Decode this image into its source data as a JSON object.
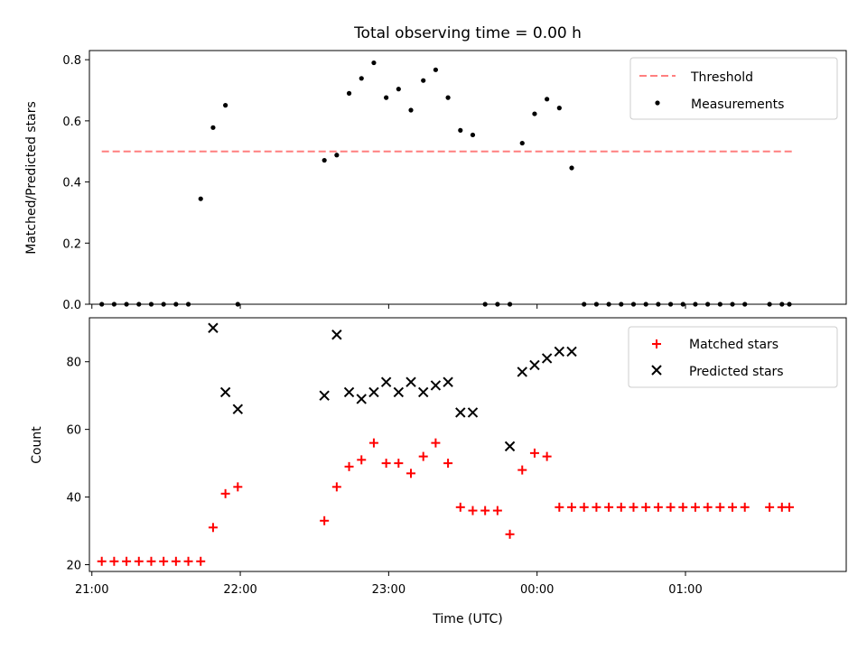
{
  "chart_data": [
    {
      "type": "scatter",
      "title": "Total observing time = 0.00 h",
      "xlabel": "",
      "ylabel": "Matched/Predicted stars",
      "ylim": [
        0,
        0.83
      ],
      "xlim": [
        "20:59",
        "02:05"
      ],
      "yticks": [
        0.0,
        0.2,
        0.4,
        0.6,
        0.8
      ],
      "ytick_labels": [
        "0.0",
        "0.2",
        "0.4",
        "0.6",
        "0.8"
      ],
      "grid": false,
      "legend_position": "top-right",
      "series": [
        {
          "name": "Threshold",
          "kind": "line",
          "style": "dashed",
          "color": "#ff7f7f",
          "x": [
            "21:04",
            "01:43"
          ],
          "y": [
            0.5,
            0.5
          ]
        },
        {
          "name": "Measurements",
          "kind": "scatter",
          "marker": "dot",
          "color": "#000000",
          "x": [
            "21:04",
            "21:09",
            "21:14",
            "21:19",
            "21:24",
            "21:29",
            "21:34",
            "21:39",
            "21:44",
            "21:49",
            "21:54",
            "21:59",
            "22:34",
            "22:39",
            "22:44",
            "22:49",
            "22:54",
            "22:59",
            "23:04",
            "23:09",
            "23:14",
            "23:19",
            "23:24",
            "23:29",
            "23:34",
            "23:39",
            "23:44",
            "23:49",
            "23:54",
            "23:59",
            "00:04",
            "00:09",
            "00:14",
            "00:19",
            "00:24",
            "00:29",
            "00:34",
            "00:39",
            "00:44",
            "00:49",
            "00:54",
            "00:59",
            "01:04",
            "01:09",
            "01:14",
            "01:19",
            "01:24",
            "01:34",
            "01:39",
            "01:42"
          ],
          "y": [
            0,
            0,
            0,
            0,
            0,
            0,
            0,
            0,
            0.345,
            0.578,
            0.651,
            0,
            0.471,
            0.488,
            0.69,
            0.739,
            0.79,
            0.676,
            0.704,
            0.635,
            0.732,
            0.767,
            0.676,
            0.569,
            0.554,
            0,
            0,
            0,
            0.527,
            0.623,
            0.671,
            0.642,
            0.446,
            0,
            0,
            0,
            0,
            0,
            0,
            0,
            0,
            0,
            0,
            0,
            0,
            0,
            0,
            0,
            0,
            0
          ]
        }
      ]
    },
    {
      "type": "scatter",
      "title": "",
      "xlabel": "Time (UTC)",
      "ylabel": "Count",
      "ylim": [
        18,
        93
      ],
      "xlim": [
        "20:59",
        "02:05"
      ],
      "yticks": [
        20,
        40,
        60,
        80
      ],
      "ytick_labels": [
        "20",
        "40",
        "60",
        "80"
      ],
      "xticks": [
        "21:00",
        "22:00",
        "23:00",
        "00:00",
        "01:00"
      ],
      "grid": false,
      "legend_position": "top-right",
      "series": [
        {
          "name": "Matched stars",
          "marker": "plus",
          "color": "#ff0000",
          "x": [
            "21:04",
            "21:09",
            "21:14",
            "21:19",
            "21:24",
            "21:29",
            "21:34",
            "21:39",
            "21:44",
            "21:49",
            "21:54",
            "21:59",
            "22:34",
            "22:39",
            "22:44",
            "22:49",
            "22:54",
            "22:59",
            "23:04",
            "23:09",
            "23:14",
            "23:19",
            "23:24",
            "23:29",
            "23:34",
            "23:39",
            "23:44",
            "23:49",
            "23:54",
            "23:59",
            "00:04",
            "00:09",
            "00:14",
            "00:19",
            "00:24",
            "00:29",
            "00:34",
            "00:39",
            "00:44",
            "00:49",
            "00:54",
            "00:59",
            "01:04",
            "01:09",
            "01:14",
            "01:19",
            "01:24",
            "01:34",
            "01:39",
            "01:42"
          ],
          "y": [
            21,
            21,
            21,
            21,
            21,
            21,
            21,
            21,
            21,
            31,
            41,
            43,
            33,
            43,
            49,
            51,
            56,
            50,
            50,
            47,
            52,
            56,
            50,
            37,
            36,
            36,
            36,
            29,
            48,
            53,
            52,
            37,
            37,
            37,
            37,
            37,
            37,
            37,
            37,
            37,
            37,
            37,
            37,
            37,
            37,
            37,
            37,
            37,
            37,
            37
          ]
        },
        {
          "name": "Predicted stars",
          "marker": "x",
          "color": "#000000",
          "x": [
            "21:49",
            "21:54",
            "21:59",
            "22:34",
            "22:39",
            "22:44",
            "22:49",
            "22:54",
            "22:59",
            "23:04",
            "23:09",
            "23:14",
            "23:19",
            "23:24",
            "23:29",
            "23:34",
            "23:49",
            "23:54",
            "23:59",
            "00:04",
            "00:09",
            "00:14"
          ],
          "y": [
            90,
            71,
            66,
            70,
            88,
            71,
            69,
            71,
            74,
            71,
            74,
            71,
            73,
            74,
            65,
            65,
            55,
            77,
            79,
            81,
            83,
            83
          ]
        }
      ]
    }
  ]
}
